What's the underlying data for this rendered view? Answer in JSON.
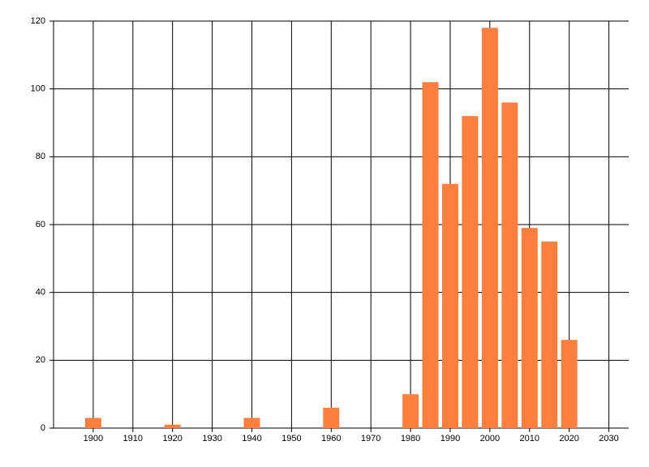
{
  "chart_data": {
    "type": "bar",
    "x": [
      1900,
      1920,
      1940,
      1960,
      1980,
      1985,
      1990,
      1995,
      2000,
      2005,
      2010,
      2015,
      2020
    ],
    "values": [
      3,
      1,
      3,
      6,
      10,
      102,
      72,
      92,
      118,
      96,
      59,
      55,
      26
    ],
    "color": "#ff7f3f",
    "xlim": [
      1890,
      2035
    ],
    "xticks": [
      1900,
      1910,
      1920,
      1930,
      1940,
      1950,
      1960,
      1970,
      1980,
      1990,
      2000,
      2010,
      2020,
      2030
    ],
    "ylim": [
      0,
      120
    ],
    "yticks": [
      0,
      20,
      40,
      60,
      80,
      100,
      120
    ],
    "grid": true
  }
}
